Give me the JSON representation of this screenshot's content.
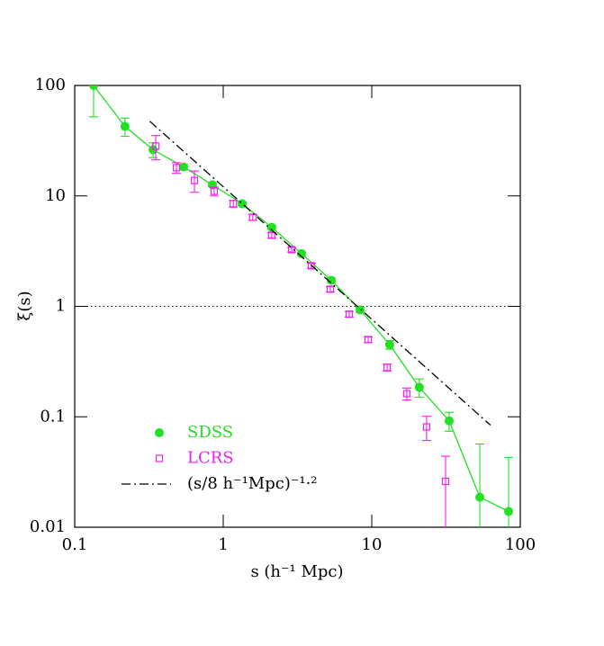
{
  "chart_data": {
    "type": "scatter",
    "xlabel": "s (h⁻¹ Mpc)",
    "ylabel": "ξ(s)",
    "xscale": "log",
    "yscale": "log",
    "xlim": [
      0.1,
      100
    ],
    "ylim": [
      0.01,
      100
    ],
    "xticks": [
      0.1,
      1,
      10,
      100
    ],
    "yticks": [
      0.01,
      0.1,
      1,
      10,
      100
    ],
    "hline": 1,
    "legend": "lower left",
    "series": [
      {
        "name": "SDSS",
        "color": "#22e022",
        "marker": "circle",
        "connect": true,
        "x": [
          0.134,
          0.218,
          0.337,
          0.541,
          0.846,
          1.34,
          2.12,
          3.37,
          5.34,
          8.34,
          13.2,
          20.9,
          33.2,
          53.4,
          83.4
        ],
        "values": [
          100,
          42.6,
          26.2,
          18.3,
          12.6,
          8.5,
          5.2,
          3.0,
          1.72,
          0.93,
          0.45,
          0.185,
          0.092,
          0.0187,
          0.0139
        ],
        "errors": [
          48,
          8,
          4,
          1,
          0.5,
          0.3,
          0.2,
          0.1,
          0.08,
          0.05,
          0.04,
          0.035,
          0.018,
          0.038,
          0.029
        ]
      },
      {
        "name": "LCRS",
        "color": "#ee22ee",
        "marker": "square",
        "connect": false,
        "x": [
          0.351,
          0.484,
          0.64,
          0.869,
          1.17,
          1.58,
          2.12,
          2.89,
          3.92,
          5.26,
          7.05,
          9.46,
          12.7,
          17.2,
          23.4,
          31.4
        ],
        "values": [
          28.2,
          18,
          13.8,
          11,
          8.5,
          6.4,
          4.4,
          3.26,
          2.33,
          1.43,
          0.85,
          0.5,
          0.28,
          0.162,
          0.081,
          0.026
        ],
        "errors": [
          7,
          2,
          3,
          1,
          0.6,
          0.4,
          0.25,
          0.15,
          0.12,
          0.08,
          0.05,
          0.03,
          0.02,
          0.02,
          0.02,
          0.018
        ]
      },
      {
        "name": "(s/8 h⁻¹Mpc)⁻¹·²",
        "color": "#000000",
        "marker": "none",
        "connect": true,
        "style": "dashdot",
        "x": [
          0.32,
          63
        ],
        "values": [
          47.5,
          0.084
        ]
      }
    ]
  }
}
